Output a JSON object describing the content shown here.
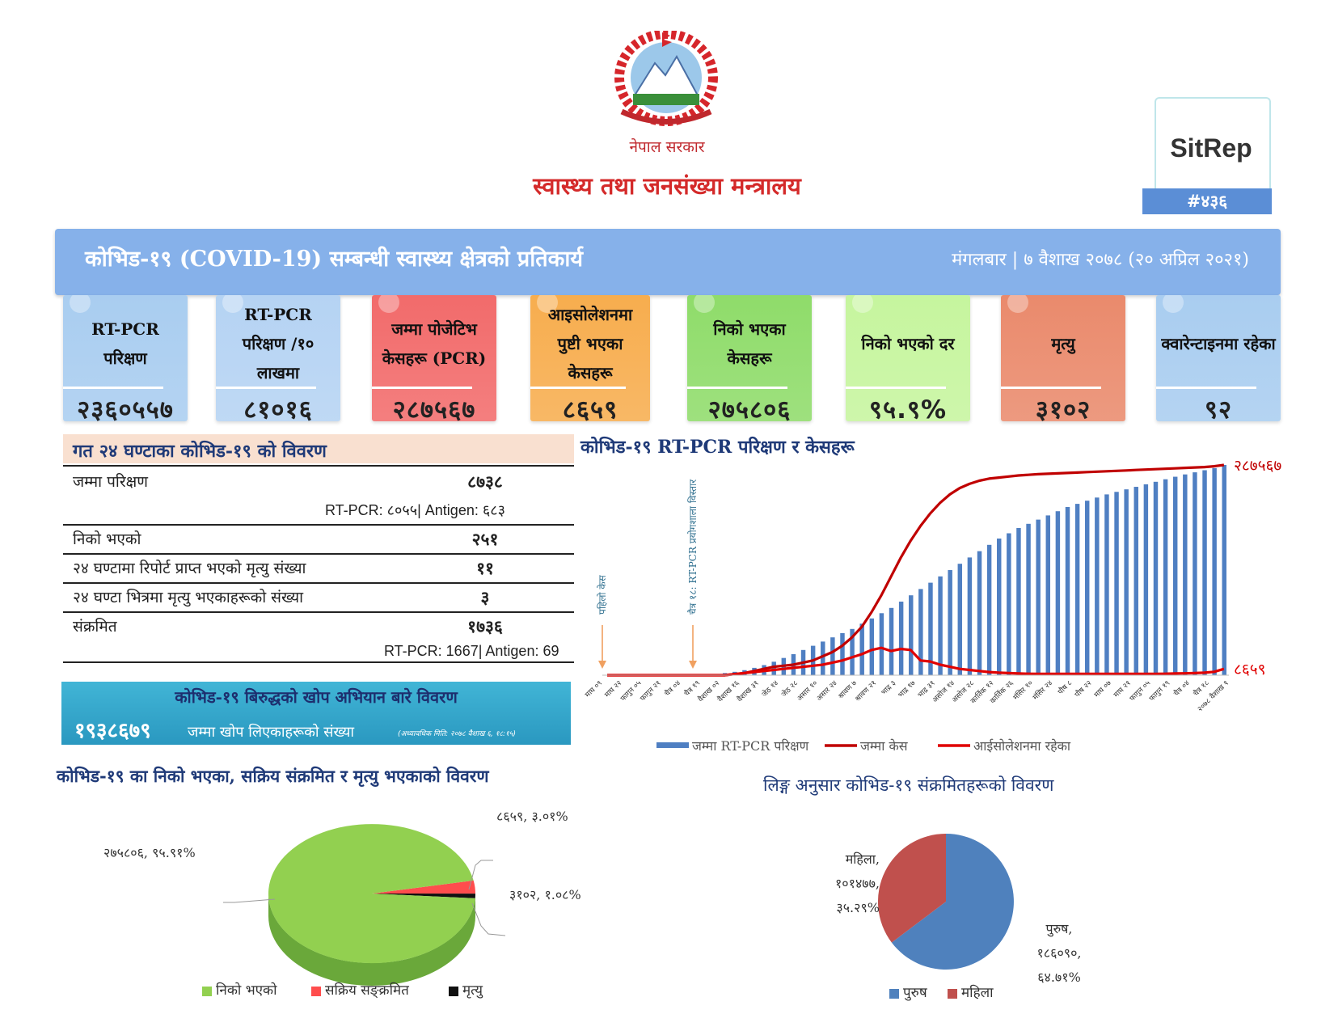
{
  "header": {
    "government": "नेपाल सरकार",
    "ministry": "स्वास्थ्य तथा जनसंख्या मन्त्रालय",
    "sitrep_label": "SitRep",
    "sitrep_number": "#४३६"
  },
  "title_bar": {
    "title": "कोभिड-१९ (COVID-19) सम्बन्धी स्वास्थ्य क्षेत्रको प्रतिकार्य",
    "date": "मंगलबार | ७ वैशाख २०७८ (२० अप्रिल २०२१)"
  },
  "cards": [
    {
      "label": "RT-PCR परिक्षण",
      "value": "२३६०५५७",
      "color": "#a9cdf0"
    },
    {
      "label": "RT-PCR परिक्षण /१० लाखमा",
      "value": "८१०१६",
      "color": "#b5d3f3"
    },
    {
      "label": "जम्मा पोजेटिभ केसहरू (PCR)",
      "value": "२८७५६७",
      "color": "#f26b6b"
    },
    {
      "label": "आइसोलेशनमा पुष्टी भएका केसहरू",
      "value": "८६५९",
      "color": "#f7ad4e"
    },
    {
      "label": "निको भएका केसहरू",
      "value": "२७५८०६",
      "color": "#8fdc6a"
    },
    {
      "label": "निको भएको दर",
      "value": "९५.९%",
      "color": "#c6f59e"
    },
    {
      "label": "मृत्यु",
      "value": "३१०२",
      "color": "#ea8a6c"
    },
    {
      "label": "क्वारेन्टाइनमा रहेका",
      "value": "९२",
      "color": "#a9cdf0"
    }
  ],
  "last24": {
    "heading": "गत २४ घण्टाका कोभिड-१९ को विवरण",
    "rows": [
      {
        "label": "जम्मा परिक्षण",
        "value": "८७३८",
        "sub": "RT-PCR: ८०५५| Antigen: ६८३"
      },
      {
        "label": "निको भएको",
        "value": "२५१",
        "sub": ""
      },
      {
        "label": "२४ घण्टामा रिपोर्ट प्राप्त भएको मृत्यु संख्या",
        "value": "११",
        "sub": ""
      },
      {
        "label": "२४ घण्टा भित्रमा मृत्यु भएकाहरूको संख्या",
        "value": "३",
        "sub": ""
      },
      {
        "label": "संक्रमित",
        "value": "१७३६",
        "sub": "RT-PCR: 1667| Antigen: 69"
      }
    ]
  },
  "vaccine": {
    "title": "कोभिड-१९ बिरुद्धको खोप अभियान बारे विवरण",
    "number": "१९३८६७९",
    "label": "जम्मा खोप लिएकाहरूको संख्या",
    "note": "(अध्यावधिक मिति: २०७८ वैशाख ६, १८:१५)"
  },
  "chart_data": [
    {
      "type": "bar+line",
      "title": "कोभिड-१९ RT-PCR परिक्षण र केसहरू",
      "x_labels": [
        "माघ ०९",
        "माघ २२",
        "फागुन ०५",
        "फागुन २१",
        "चैत्र ०४",
        "चैत्र १९",
        "वैशाख ०२",
        "वैशाख १६",
        "वैशाख ३१",
        "जेठ १४",
        "जेठ २८",
        "असार १०",
        "असार २४",
        "श्रावण ७",
        "श्रावण २१",
        "भाद्र ३",
        "भाद्र १७",
        "भाद्र ३१",
        "असोज १४",
        "असोज २८",
        "कार्तिक १२",
        "कार्तिक २६",
        "मंसिर १०",
        "मंसिर २४",
        "पौष ८",
        "पौष २२",
        "माघ ०७",
        "माघ २१",
        "फागुन ०५",
        "फागुन १९",
        "चैत्र ०४",
        "चैत्र १८",
        "२०७८ वैशाख १"
      ],
      "legend": [
        "जम्मा RT-PCR परिक्षण",
        "जम्मा केस",
        "आईसोलेशनमा रहेका"
      ],
      "series": [
        {
          "name": "जम्मा RT-PCR परिक्षण",
          "kind": "bar",
          "color": "#4f7fc2",
          "values": [
            0,
            0,
            0,
            0,
            0,
            0,
            0,
            0,
            0,
            0,
            0,
            0.005,
            0.01,
            0.016,
            0.024,
            0.035,
            0.048,
            0.064,
            0.082,
            0.1,
            0.12,
            0.14,
            0.16,
            0.18,
            0.2,
            0.22,
            0.245,
            0.27,
            0.295,
            0.32,
            0.35,
            0.38,
            0.41,
            0.44,
            0.47,
            0.5,
            0.53,
            0.56,
            0.59,
            0.62,
            0.65,
            0.675,
            0.7,
            0.72,
            0.74,
            0.76,
            0.78,
            0.8,
            0.815,
            0.83,
            0.845,
            0.86,
            0.872,
            0.884,
            0.896,
            0.908,
            0.92,
            0.932,
            0.944,
            0.955,
            0.965,
            0.975,
            0.985,
            1.0
          ]
        },
        {
          "name": "जम्मा केस",
          "kind": "line",
          "color": "#c00000",
          "values": [
            0,
            0,
            0,
            0,
            0,
            0,
            0,
            0,
            0,
            0,
            0,
            0,
            0,
            0.005,
            0.01,
            0.02,
            0.03,
            0.04,
            0.045,
            0.05,
            0.06,
            0.07,
            0.09,
            0.11,
            0.14,
            0.18,
            0.23,
            0.3,
            0.38,
            0.47,
            0.56,
            0.64,
            0.71,
            0.77,
            0.82,
            0.86,
            0.89,
            0.91,
            0.925,
            0.935,
            0.94,
            0.945,
            0.95,
            0.953,
            0.956,
            0.958,
            0.96,
            0.962,
            0.964,
            0.966,
            0.968,
            0.97,
            0.972,
            0.974,
            0.976,
            0.978,
            0.98,
            0.982,
            0.984,
            0.986,
            0.988,
            0.99,
            0.994,
            1.0
          ],
          "end_label": "२८७५६७"
        },
        {
          "name": "आईसोलेशनमा रहेका",
          "kind": "line",
          "color": "#e00000",
          "values": [
            0,
            0,
            0,
            0,
            0,
            0,
            0,
            0,
            0,
            0,
            0,
            0,
            0,
            0.005,
            0.01,
            0.015,
            0.02,
            0.025,
            0.03,
            0.035,
            0.04,
            0.045,
            0.05,
            0.06,
            0.07,
            0.085,
            0.1,
            0.12,
            0.13,
            0.115,
            0.125,
            0.12,
            0.07,
            0.065,
            0.05,
            0.04,
            0.03,
            0.025,
            0.02,
            0.015,
            0.012,
            0.01,
            0.008,
            0.007,
            0.006,
            0.006,
            0.006,
            0.006,
            0.006,
            0.006,
            0.006,
            0.006,
            0.006,
            0.006,
            0.006,
            0.006,
            0.006,
            0.007,
            0.008,
            0.009,
            0.01,
            0.012,
            0.016,
            0.03
          ],
          "end_label": "८६५९"
        }
      ],
      "annotations": [
        "पहिलो केस",
        "चैत्र १८: RT-PCR प्रयोगशाला विस्तार"
      ]
    },
    {
      "type": "pie",
      "title": "कोभिड-१९ का निको भएका, सक्रिय संक्रमित र मृत्यु भएकाको विवरण",
      "slices": [
        {
          "name": "निको भएको",
          "value": 275806,
          "label": "२७५८०६, ९५.९१%",
          "color": "#92d050"
        },
        {
          "name": "सक्रिय सङ्क्रमित",
          "value": 8659,
          "label": "८६५९, ३.०१%",
          "color": "#ff4d4d"
        },
        {
          "name": "मृत्यु",
          "value": 3102,
          "label": "३१०२, १.०८%",
          "color": "#111111"
        }
      ]
    },
    {
      "type": "pie",
      "title": "लिङ्ग अनुसार कोभिड-१९ संक्रमितहरूको विवरण",
      "slices": [
        {
          "name": "पुरुष",
          "value": 186090,
          "label_lines": [
            "पुरुष,",
            "१८६०९०,",
            "६४.७१%"
          ],
          "color": "#4f81bd"
        },
        {
          "name": "महिला",
          "value": 101477,
          "label_lines": [
            "महिला,",
            "१०१४७७,",
            "३५.२९%"
          ],
          "color": "#c0504d"
        }
      ]
    }
  ]
}
